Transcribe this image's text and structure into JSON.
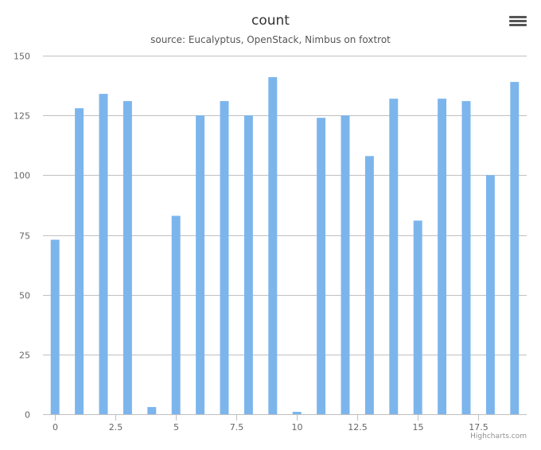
{
  "header": {
    "title": "count",
    "subtitle": "source: Eucalyptus, OpenStack, Nimbus on foxtrot",
    "menu_icon": "hamburger-menu-icon"
  },
  "credits": "Highcharts.com",
  "colors": {
    "bar": "#7cb5ec",
    "grid": "#c0c0c0",
    "axis_text": "#666666"
  },
  "chart_data": {
    "type": "bar",
    "title": "count",
    "subtitle": "source: Eucalyptus, OpenStack, Nimbus on foxtrot",
    "xlabel": "",
    "ylabel": "",
    "x": [
      0,
      1,
      2,
      3,
      4,
      5,
      6,
      7,
      8,
      9,
      10,
      11,
      12,
      13,
      14,
      15,
      16,
      17,
      18,
      19
    ],
    "values": [
      73,
      128,
      134,
      131,
      3,
      83,
      125,
      131,
      125,
      141,
      1,
      124,
      125,
      108,
      132,
      81,
      132,
      131,
      100,
      139
    ],
    "xlim": [
      -0.5,
      19.5
    ],
    "ylim": [
      0,
      150
    ],
    "x_ticks": [
      0,
      2.5,
      5,
      7.5,
      10,
      12.5,
      15,
      17.5
    ],
    "x_tick_labels": [
      "0",
      "2.5",
      "5",
      "7.5",
      "10",
      "12.5",
      "15",
      "17.5"
    ],
    "y_ticks": [
      0,
      25,
      50,
      75,
      100,
      125,
      150
    ],
    "y_tick_labels": [
      "0",
      "25",
      "50",
      "75",
      "100",
      "125",
      "150"
    ],
    "grid": true,
    "legend": false
  }
}
